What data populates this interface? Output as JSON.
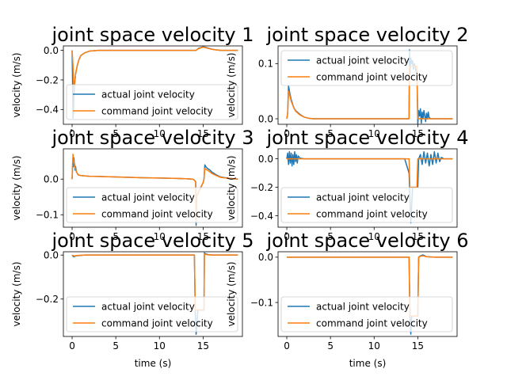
{
  "figure": {
    "background": "#ffffff",
    "series_colors": [
      "#1f77b4",
      "#ff7f0e"
    ]
  },
  "chart_data": [
    {
      "type": "line",
      "title": "joint space velocity 1",
      "xlabel": "",
      "ylabel": "velocity (m/s)",
      "xlim": [
        -1,
        19.5
      ],
      "ylim": [
        -0.5,
        0.03
      ],
      "xticks": [
        0,
        5,
        10,
        15
      ],
      "yticks": [
        0.0,
        -0.2,
        -0.4
      ],
      "ytick_labels": [
        "0.0",
        "−0.2",
        "−0.4"
      ],
      "legend": "lower-right",
      "series": [
        {
          "name": "actual joint velocity",
          "color": "#1f77b4",
          "x": [
            0,
            0.05,
            0.1,
            0.15,
            0.2,
            0.3,
            0.4,
            0.6,
            0.8,
            1.0,
            1.5,
            2.0,
            3,
            5,
            10,
            14.2,
            14.3,
            14.5,
            14.8,
            15.0,
            15.3,
            15.6,
            16.0,
            16.5,
            17,
            19
          ],
          "y": [
            0.0,
            -0.2,
            -0.46,
            -0.42,
            -0.3,
            -0.22,
            -0.16,
            -0.1,
            -0.06,
            -0.035,
            -0.015,
            -0.005,
            0.0,
            0.0,
            0.0,
            0.0,
            0.005,
            0.015,
            0.02,
            0.025,
            0.02,
            0.015,
            0.008,
            0.003,
            0.0,
            0.0
          ]
        },
        {
          "name": "command joint velocity",
          "color": "#ff7f0e",
          "x": [
            0,
            0.1,
            0.2,
            0.3,
            0.4,
            0.6,
            0.8,
            1.0,
            1.5,
            2.0,
            3,
            5,
            10,
            14.2,
            14.3,
            14.5,
            14.8,
            15.0,
            15.3,
            15.6,
            16.0,
            16.5,
            17,
            19
          ],
          "y": [
            0.0,
            -0.1,
            -0.25,
            -0.22,
            -0.16,
            -0.1,
            -0.06,
            -0.035,
            -0.015,
            -0.005,
            0.0,
            0.0,
            0.0,
            0.0,
            0.005,
            0.012,
            0.018,
            0.022,
            0.018,
            0.013,
            0.007,
            0.003,
            0.0,
            0.0
          ]
        }
      ]
    },
    {
      "type": "line",
      "title": "joint space velocity 2",
      "xlabel": "",
      "ylabel": "velocity (m/s)",
      "xlim": [
        -1,
        19.5
      ],
      "ylim": [
        -0.01,
        0.132
      ],
      "xticks": [
        0,
        5,
        10,
        15
      ],
      "yticks": [
        0.0,
        0.1
      ],
      "ytick_labels": [
        "0.0",
        "0.1"
      ],
      "legend": "top-right",
      "series": [
        {
          "name": "actual joint velocity",
          "color": "#1f77b4",
          "x": [
            0,
            0.1,
            0.2,
            0.3,
            0.5,
            0.8,
            1.0,
            1.5,
            2.0,
            2.5,
            3,
            5,
            10,
            14.0,
            14.05,
            14.1,
            14.2,
            14.3,
            14.4,
            14.5,
            14.6,
            14.7,
            14.8,
            14.9,
            15.0,
            15.1,
            15.2,
            15.3,
            15.4,
            15.5,
            15.6,
            15.7,
            15.8,
            15.9,
            16.0,
            16.1,
            16.2,
            16.3,
            16.5,
            17,
            19
          ],
          "y": [
            0.0,
            0.01,
            0.06,
            0.05,
            0.035,
            0.02,
            0.015,
            0.008,
            0.003,
            0.001,
            0.0,
            0.0,
            0.0,
            0.0,
            0.125,
            0.08,
            0.11,
            0.1,
            0.105,
            0.09,
            0.1,
            0.095,
            0.085,
            0.09,
            -0.01,
            0.015,
            0.005,
            0.018,
            -0.008,
            0.012,
            0.0,
            0.015,
            0.005,
            -0.005,
            0.01,
            0.0,
            0.012,
            0.002,
            0.0,
            0.0,
            0.0
          ]
        },
        {
          "name": "command joint velocity",
          "color": "#ff7f0e",
          "x": [
            0,
            0.1,
            0.2,
            0.3,
            0.5,
            0.8,
            1.0,
            1.5,
            2.0,
            2.5,
            3,
            5,
            10,
            14.0,
            14.05,
            14.3,
            14.6,
            14.9,
            15.0,
            15.2,
            15.5,
            16.0,
            17,
            19
          ],
          "y": [
            0.0,
            0.01,
            0.05,
            0.045,
            0.032,
            0.02,
            0.014,
            0.007,
            0.003,
            0.001,
            0.0,
            0.0,
            0.0,
            0.0,
            0.095,
            0.095,
            0.095,
            0.095,
            0.0,
            0.0,
            0.0,
            0.0,
            0.0,
            0.0
          ]
        }
      ]
    },
    {
      "type": "line",
      "title": "joint space velocity 3",
      "xlabel": "",
      "ylabel": "velocity (m/s)",
      "xlim": [
        -1,
        19.5
      ],
      "ylim": [
        -0.135,
        0.085
      ],
      "xticks": [
        0,
        5,
        10,
        15
      ],
      "yticks": [
        0.0,
        -0.1
      ],
      "ytick_labels": [
        "0.0",
        "−0.1"
      ],
      "legend": "lower-right",
      "series": [
        {
          "name": "actual joint velocity",
          "color": "#1f77b4",
          "x": [
            0,
            0.05,
            0.1,
            0.15,
            0.2,
            0.25,
            0.3,
            0.35,
            0.4,
            0.5,
            0.7,
            1.0,
            1.5,
            2,
            5,
            8,
            10,
            12,
            13,
            13.8,
            14.0,
            14.15,
            14.2,
            14.25,
            14.5,
            14.8,
            15.0,
            15.1,
            15.2,
            15.3,
            15.5,
            15.8,
            16.0,
            16.5,
            17,
            18,
            19
          ],
          "y": [
            0.0,
            0.03,
            0.05,
            0.035,
            0.06,
            0.045,
            0.04,
            0.025,
            0.035,
            0.02,
            0.012,
            0.01,
            0.009,
            0.008,
            0.006,
            0.004,
            0.003,
            0.002,
            0.001,
            0.0,
            -0.003,
            -0.008,
            -0.13,
            -0.05,
            -0.035,
            -0.02,
            -0.01,
            0.0,
            0.04,
            0.035,
            0.03,
            0.025,
            0.02,
            0.012,
            0.006,
            0.002,
            0.0
          ]
        },
        {
          "name": "command joint velocity",
          "color": "#ff7f0e",
          "x": [
            0,
            0.05,
            0.1,
            0.15,
            0.2,
            0.3,
            0.4,
            0.5,
            0.7,
            1.0,
            1.5,
            2,
            5,
            8,
            10,
            12,
            13,
            13.8,
            14.0,
            14.15,
            14.2,
            14.25,
            14.5,
            14.8,
            15.0,
            15.1,
            15.2,
            15.3,
            15.5,
            15.8,
            16.0,
            16.5,
            17,
            18,
            19
          ],
          "y": [
            0.0,
            0.04,
            0.07,
            0.05,
            0.05,
            0.035,
            0.03,
            0.02,
            0.012,
            0.01,
            0.009,
            0.008,
            0.006,
            0.004,
            0.003,
            0.002,
            0.001,
            0.0,
            -0.003,
            -0.008,
            -0.12,
            -0.05,
            -0.035,
            -0.02,
            -0.01,
            0.0,
            0.03,
            0.028,
            0.025,
            0.02,
            0.016,
            0.01,
            0.005,
            0.002,
            0.0
          ]
        }
      ]
    },
    {
      "type": "line",
      "title": "joint space velocity 4",
      "xlabel": "",
      "ylabel": "velocity (m/s)",
      "xlim": [
        -1,
        19.5
      ],
      "ylim": [
        -0.48,
        0.07
      ],
      "xticks": [
        0,
        5,
        10,
        15
      ],
      "yticks": [
        0.0,
        -0.2,
        -0.4
      ],
      "ytick_labels": [
        "0.0",
        "−0.2",
        "−0.4"
      ],
      "legend": "lower-right",
      "series": [
        {
          "name": "actual joint velocity",
          "color": "#1f77b4",
          "x": [
            0,
            0.1,
            0.2,
            0.3,
            0.4,
            0.5,
            0.6,
            0.7,
            0.8,
            0.9,
            1.0,
            1.1,
            1.2,
            1.3,
            1.5,
            2,
            5,
            10,
            13.5,
            14.0,
            14.2,
            14.4,
            14.6,
            14.8,
            15.0,
            15.1,
            15.3,
            15.5,
            15.7,
            15.9,
            16.1,
            16.3,
            16.5,
            16.7,
            16.9,
            17.1,
            17.3,
            17.5,
            17.7,
            18,
            19
          ],
          "y": [
            0.0,
            0.04,
            -0.04,
            0.05,
            -0.03,
            0.04,
            -0.05,
            0.03,
            -0.04,
            0.05,
            -0.02,
            0.03,
            -0.03,
            0.02,
            0.005,
            0.0,
            0.0,
            0.0,
            0.0,
            -0.1,
            -0.45,
            -0.2,
            -0.2,
            -0.2,
            -0.2,
            0.0,
            0.03,
            -0.04,
            0.05,
            -0.03,
            0.04,
            -0.05,
            0.03,
            -0.04,
            0.05,
            -0.03,
            0.04,
            -0.02,
            0.01,
            0.0,
            0.0
          ]
        },
        {
          "name": "command joint velocity",
          "color": "#ff7f0e",
          "x": [
            0,
            1,
            2,
            5,
            10,
            13.5,
            14.0,
            14.1,
            14.5,
            14.9,
            15.0,
            15.1,
            16,
            19
          ],
          "y": [
            0.0,
            0.0,
            0.0,
            0.0,
            0.0,
            0.0,
            0.0,
            -0.2,
            -0.2,
            -0.2,
            0.0,
            0.0,
            0.0,
            0.0
          ]
        }
      ]
    },
    {
      "type": "line",
      "title": "joint space velocity 5",
      "xlabel": "time (s)",
      "ylabel": "velocity (m/s)",
      "xlim": [
        -1,
        19.5
      ],
      "ylim": [
        -0.37,
        0.015
      ],
      "xticks": [
        0,
        5,
        10,
        15
      ],
      "yticks": [
        0.0,
        -0.2
      ],
      "ytick_labels": [
        "0.0",
        "−0.2"
      ],
      "legend": "lower-right",
      "series": [
        {
          "name": "actual joint velocity",
          "color": "#1f77b4",
          "x": [
            0,
            0.1,
            0.2,
            0.4,
            0.8,
            1.5,
            2,
            5,
            10,
            14.0,
            14.1,
            14.2,
            14.4,
            14.7,
            15.0,
            15.1,
            15.15,
            15.3,
            15.6,
            16,
            17,
            19
          ],
          "y": [
            0.0,
            -0.005,
            -0.008,
            -0.004,
            -0.002,
            0.0,
            0.0,
            0.0,
            0.0,
            0.0,
            -0.25,
            -0.36,
            -0.25,
            -0.25,
            -0.25,
            -0.25,
            0.01,
            0.005,
            0.002,
            0.0,
            0.0,
            0.0
          ]
        },
        {
          "name": "command joint velocity",
          "color": "#ff7f0e",
          "x": [
            0,
            0.2,
            0.4,
            0.8,
            1.5,
            2,
            5,
            10,
            14.0,
            14.1,
            14.4,
            14.7,
            15.0,
            15.1,
            15.15,
            15.3,
            15.6,
            16,
            17,
            19
          ],
          "y": [
            0.0,
            -0.004,
            -0.003,
            -0.001,
            0.0,
            0.0,
            0.0,
            0.0,
            0.0,
            -0.25,
            -0.25,
            -0.25,
            -0.25,
            -0.25,
            0.005,
            0.003,
            0.001,
            0.0,
            0.0,
            0.0
          ]
        }
      ]
    },
    {
      "type": "line",
      "title": "joint space velocity 6",
      "xlabel": "time (s)",
      "ylabel": "velocity (m/s)",
      "xlim": [
        -1,
        19.5
      ],
      "ylim": [
        -0.175,
        0.012
      ],
      "xticks": [
        0,
        5,
        10,
        15
      ],
      "yticks": [
        0.0,
        -0.1
      ],
      "ytick_labels": [
        "0.0",
        "−0.1"
      ],
      "legend": "lower-right",
      "series": [
        {
          "name": "actual joint velocity",
          "color": "#1f77b4",
          "x": [
            0,
            1,
            2,
            5,
            10,
            13.8,
            14.0,
            14.1,
            14.2,
            14.3,
            14.5,
            14.8,
            15.0,
            15.1,
            15.3,
            15.6,
            16.0,
            17,
            19
          ],
          "y": [
            0.0,
            0.0,
            0.0,
            0.0,
            0.0,
            0.0,
            0.0,
            -0.13,
            -0.17,
            -0.13,
            -0.13,
            -0.13,
            -0.13,
            0.0,
            0.003,
            0.005,
            0.001,
            0.0,
            0.0
          ]
        },
        {
          "name": "command joint velocity",
          "color": "#ff7f0e",
          "x": [
            0,
            1,
            2,
            5,
            10,
            13.8,
            14.0,
            14.1,
            14.5,
            14.8,
            15.0,
            15.1,
            15.3,
            15.6,
            16.0,
            17,
            19
          ],
          "y": [
            0.0,
            0.0,
            0.0,
            0.0,
            0.0,
            0.0,
            0.0,
            -0.13,
            -0.13,
            -0.13,
            -0.13,
            0.0,
            0.002,
            0.003,
            0.001,
            0.0,
            0.0
          ]
        }
      ]
    }
  ]
}
